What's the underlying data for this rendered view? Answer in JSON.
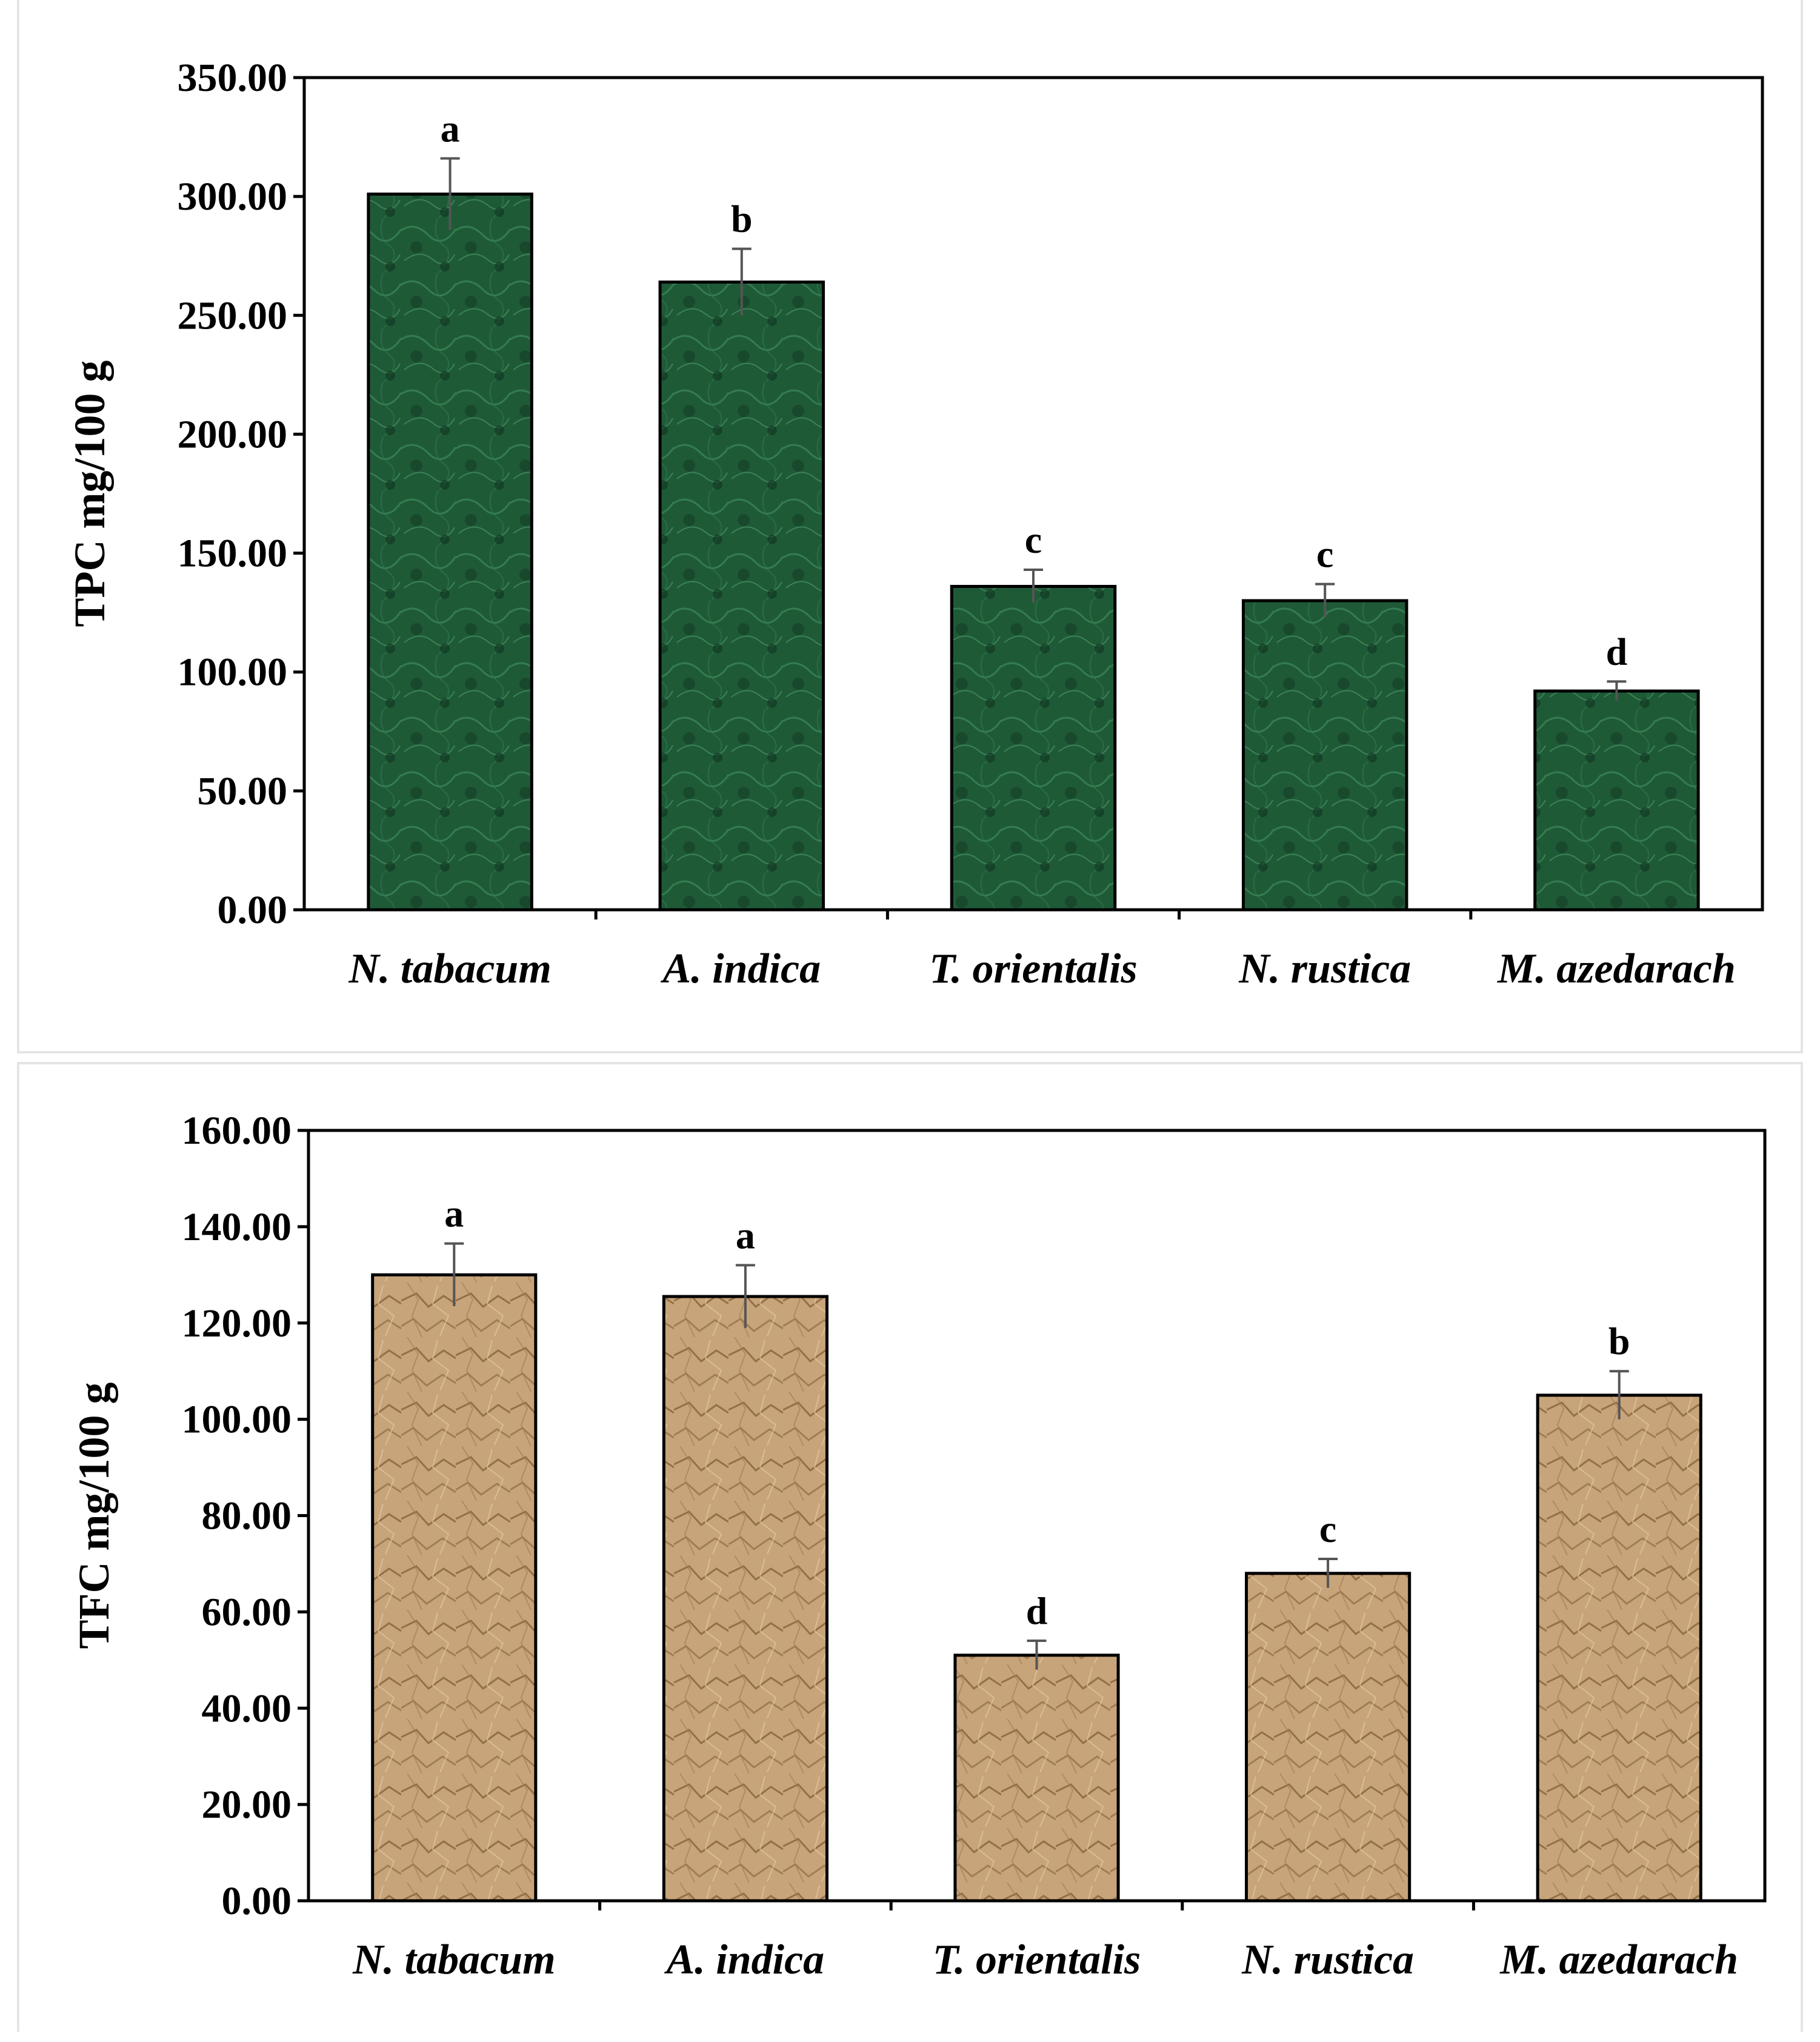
{
  "chart_data": [
    {
      "type": "bar",
      "categories": [
        "N. tabacum",
        "A. indica",
        "T. orientalis",
        "N. rustica",
        "M. azedarach"
      ],
      "values": [
        301,
        264,
        136,
        130,
        92
      ],
      "errors": [
        15,
        14,
        7,
        7,
        4
      ],
      "significance": [
        "a",
        "b",
        "c",
        "c",
        "d"
      ],
      "title": "",
      "xlabel": "",
      "ylabel": "TPC mg/100 g",
      "ylim": [
        0,
        350
      ],
      "yticks": [
        0,
        50,
        100,
        150,
        200,
        250,
        300,
        350
      ],
      "ytick_labels": [
        "0.00",
        "50.00",
        "100.00",
        "150.00",
        "200.00",
        "250.00",
        "300.00",
        "350.00"
      ],
      "grid": false,
      "bar_color": "#1f5a37",
      "bar_texture": "green-marble"
    },
    {
      "type": "bar",
      "categories": [
        "N. tabacum",
        "A. indica",
        "T. orientalis",
        "N. rustica",
        "M. azedarach"
      ],
      "values": [
        130,
        125.5,
        51,
        68,
        105
      ],
      "errors": [
        6.5,
        6.5,
        3,
        3,
        5
      ],
      "significance": [
        "a",
        "a",
        "d",
        "c",
        "b"
      ],
      "title": "",
      "xlabel": "",
      "ylabel": "TFC mg/100 g",
      "ylim": [
        0,
        160
      ],
      "yticks": [
        0,
        20,
        40,
        60,
        80,
        100,
        120,
        140,
        160
      ],
      "ytick_labels": [
        "0.00",
        "20.00",
        "40.00",
        "60.00",
        "80.00",
        "100.00",
        "120.00",
        "140.00",
        "160.00"
      ],
      "grid": false,
      "bar_color": "#c8a47a",
      "bar_texture": "crumpled-paper"
    }
  ]
}
